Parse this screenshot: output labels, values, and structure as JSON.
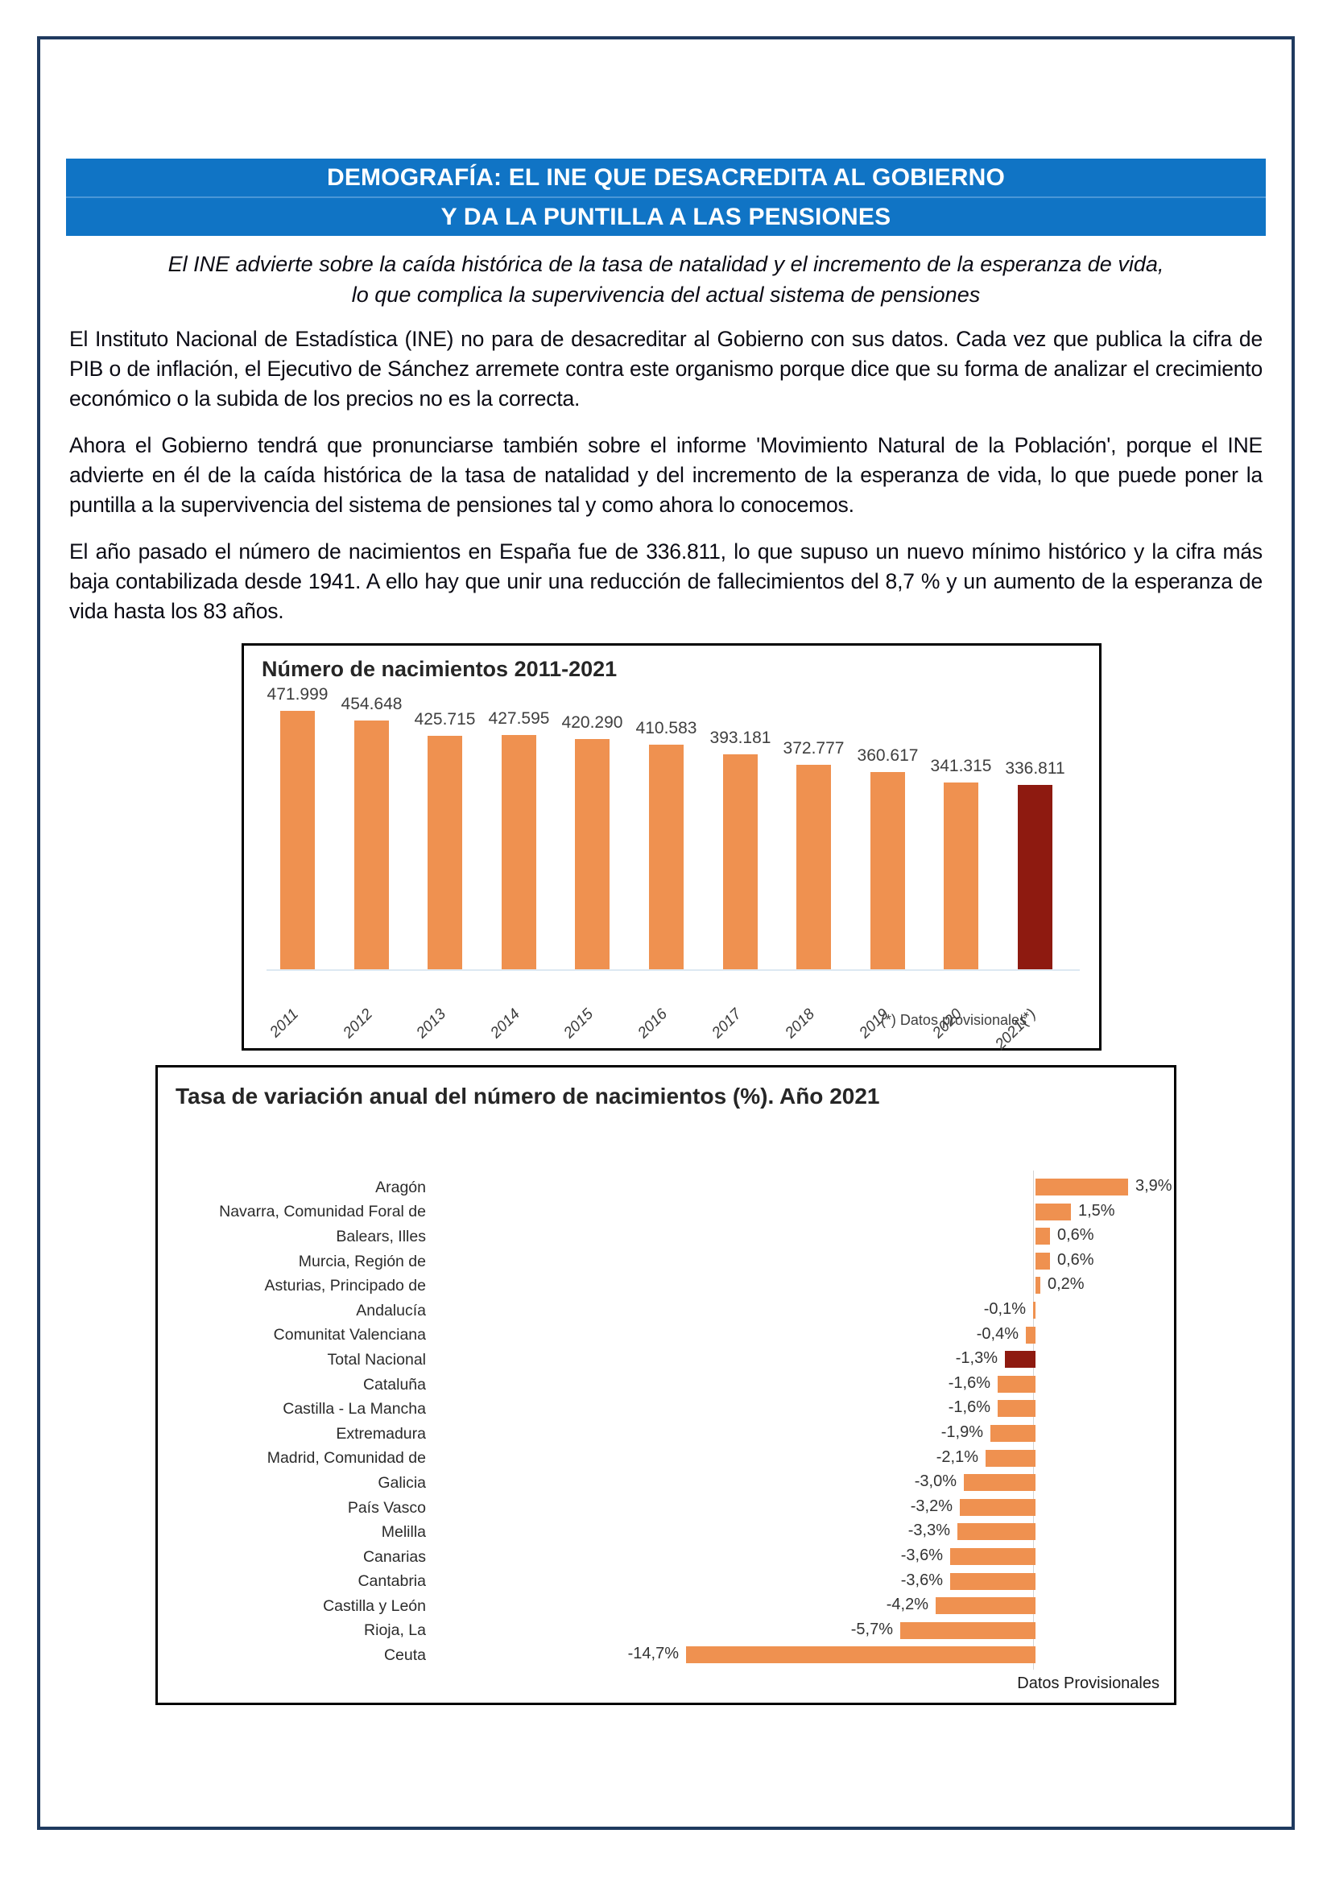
{
  "header": {
    "line1": "DEMOGRAFÍA: EL INE QUE DESACREDITA AL GOBIERNO",
    "line2": "Y DA LA PUNTILLA A LAS PENSIONES"
  },
  "subtitle": {
    "line1": "El INE advierte sobre la caída histórica de la tasa de natalidad y el incremento de la esperanza de vida,",
    "line2": "lo que complica la supervivencia del actual sistema de pensiones"
  },
  "paragraphs": [
    "El Instituto Nacional de Estadística (INE) no para de desacreditar al Gobierno con sus datos. Cada vez que publica la cifra de PIB o de inflación, el Ejecutivo de Sánchez arremete contra este organismo porque dice que su forma de analizar el crecimiento económico o la subida de los precios no es la correcta.",
    "Ahora el Gobierno tendrá que pronunciarse también sobre el informe 'Movimiento Natural de la Población', porque el INE advierte en él de la caída histórica de la tasa de natalidad y del incremento de la esperanza de vida, lo que puede poner la puntilla a la supervivencia del sistema de pensiones tal y como ahora lo conocemos.",
    "El año pasado el número de nacimientos en España fue de 336.811, lo que supuso un nuevo mínimo histórico y la cifra más baja contabilizada desde 1941. A ello hay que unir una reducción de fallecimientos del 8,7 % y un aumento de la esperanza de vida hasta los 83 años."
  ],
  "colors": {
    "banner_blue": "#1074c5",
    "bar_orange": "#ef9150",
    "highlight_dark_red": "#8e1a10",
    "page_border_navy": "#1f3a5f"
  },
  "chart_data": [
    {
      "type": "bar",
      "title": "Número de nacimientos 2011-2021",
      "categories": [
        "2011",
        "2012",
        "2013",
        "2014",
        "2015",
        "2016",
        "2017",
        "2018",
        "2019",
        "2020",
        "2021(*)"
      ],
      "values": [
        471999,
        454648,
        425715,
        427595,
        420290,
        410583,
        393181,
        372777,
        360617,
        341315,
        336811
      ],
      "value_labels": [
        "471.999",
        "454.648",
        "425.715",
        "427.595",
        "420.290",
        "410.583",
        "393.181",
        "372.777",
        "360.617",
        "341.315",
        "336.811"
      ],
      "highlight_index": 10,
      "bar_color": "#ef9150",
      "highlight_color": "#8e1a10",
      "footnote": "(*) Datos provisionales",
      "ylim": [
        0,
        480000
      ],
      "grid": false,
      "legend": "none"
    },
    {
      "type": "bar-horizontal",
      "title": "Tasa de variación anual del número de nacimientos (%). Año 2021",
      "categories": [
        "Aragón",
        "Navarra, Comunidad Foral de",
        "Balears, Illes",
        "Murcia, Región de",
        "Asturias, Principado de",
        "Andalucía",
        "Comunitat Valenciana",
        "Total Nacional",
        "Cataluña",
        "Castilla - La Mancha",
        "Extremadura",
        "Madrid, Comunidad de",
        "Galicia",
        "País Vasco",
        "Melilla",
        "Canarias",
        "Cantabria",
        "Castilla y León",
        "Rioja, La",
        "Ceuta"
      ],
      "values": [
        3.9,
        1.5,
        0.6,
        0.6,
        0.2,
        -0.1,
        -0.4,
        -1.3,
        -1.6,
        -1.6,
        -1.9,
        -2.1,
        -3.0,
        -3.2,
        -3.3,
        -3.6,
        -3.6,
        -4.2,
        -5.7,
        -14.7
      ],
      "value_labels": [
        "3,9%",
        "1,5%",
        "0,6%",
        "0,6%",
        "0,2%",
        "-0,1%",
        "-0,4%",
        "-1,3%",
        "-1,6%",
        "-1,6%",
        "-1,9%",
        "-2,1%",
        "-3,0%",
        "-3,2%",
        "-3,3%",
        "-3,6%",
        "-3,6%",
        "-4,2%",
        "-5,7%",
        "-14,7%"
      ],
      "highlight_index": 7,
      "bar_color": "#ef9150",
      "highlight_color": "#8e1a10",
      "footnote": "Datos Provisionales",
      "xlim": [
        -14.7,
        3.9
      ],
      "grid": false,
      "legend": "none"
    }
  ]
}
